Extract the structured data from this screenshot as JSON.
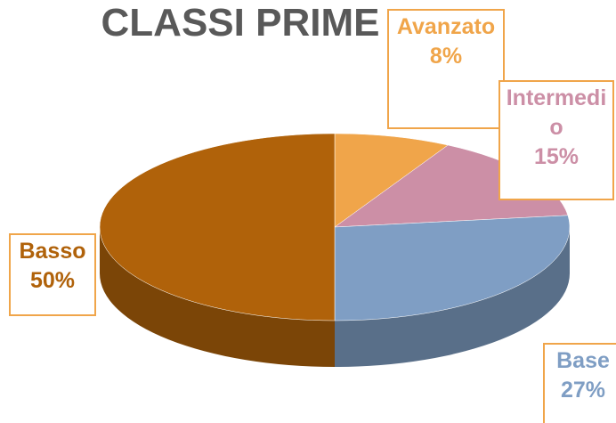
{
  "chart_data": {
    "type": "pie",
    "title": "CLASSI PRIME",
    "categories": [
      "Avanzato",
      "Intermedio",
      "Base",
      "Basso"
    ],
    "values": [
      8,
      15,
      27,
      50
    ],
    "value_labels": [
      "8%",
      "15%",
      "27%",
      "50%"
    ],
    "colors": [
      "#f0a54a",
      "#cc8fa6",
      "#7f9ec4",
      "#b0620a"
    ]
  }
}
